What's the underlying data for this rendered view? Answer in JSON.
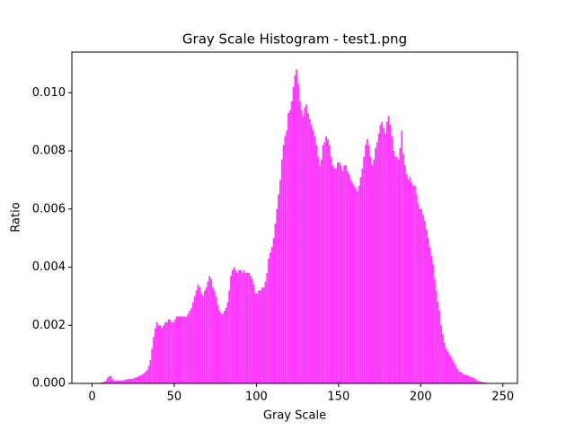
{
  "chart_data": {
    "type": "histogram",
    "title": "Gray Scale Histogram - test1.png",
    "xlabel": "Gray Scale",
    "ylabel": "Ratio",
    "color": "#ff38ff",
    "bins": [
      0,
      1,
      2,
      3,
      4,
      5,
      6,
      7,
      8,
      9,
      10,
      11,
      12,
      13,
      14,
      15,
      16,
      17,
      18,
      19,
      20,
      21,
      22,
      23,
      24,
      25,
      26,
      27,
      28,
      29,
      30,
      31,
      32,
      33,
      34,
      35,
      36,
      37,
      38,
      39,
      40,
      41,
      42,
      43,
      44,
      45,
      46,
      47,
      48,
      49,
      50,
      51,
      52,
      53,
      54,
      55,
      56,
      57,
      58,
      59,
      60,
      61,
      62,
      63,
      64,
      65,
      66,
      67,
      68,
      69,
      70,
      71,
      72,
      73,
      74,
      75,
      76,
      77,
      78,
      79,
      80,
      81,
      82,
      83,
      84,
      85,
      86,
      87,
      88,
      89,
      90,
      91,
      92,
      93,
      94,
      95,
      96,
      97,
      98,
      99,
      100,
      101,
      102,
      103,
      104,
      105,
      106,
      107,
      108,
      109,
      110,
      111,
      112,
      113,
      114,
      115,
      116,
      117,
      118,
      119,
      120,
      121,
      122,
      123,
      124,
      125,
      126,
      127,
      128,
      129,
      130,
      131,
      132,
      133,
      134,
      135,
      136,
      137,
      138,
      139,
      140,
      141,
      142,
      143,
      144,
      145,
      146,
      147,
      148,
      149,
      150,
      151,
      152,
      153,
      154,
      155,
      156,
      157,
      158,
      159,
      160,
      161,
      162,
      163,
      164,
      165,
      166,
      167,
      168,
      169,
      170,
      171,
      172,
      173,
      174,
      175,
      176,
      177,
      178,
      179,
      180,
      181,
      182,
      183,
      184,
      185,
      186,
      187,
      188,
      189,
      190,
      191,
      192,
      193,
      194,
      195,
      196,
      197,
      198,
      199,
      200,
      201,
      202,
      203,
      204,
      205,
      206,
      207,
      208,
      209,
      210,
      211,
      212,
      213,
      214,
      215,
      216,
      217,
      218,
      219,
      220,
      221,
      222,
      223,
      224,
      225,
      226,
      227,
      228,
      229,
      230,
      231,
      232,
      233,
      234,
      235,
      236,
      237,
      238,
      239,
      240,
      241,
      242,
      243,
      244,
      245,
      246
    ],
    "values": [
      2e-05,
      2e-05,
      2e-05,
      2e-05,
      2e-05,
      3e-05,
      4e-05,
      6e-05,
      0.0001,
      0.0002,
      0.00025,
      0.00025,
      0.00015,
      0.0001,
      0.0001,
      0.0001,
      0.0001,
      0.0001,
      0.0001,
      0.00012,
      0.00012,
      0.00015,
      0.00015,
      0.00015,
      0.00016,
      0.00018,
      0.0002,
      0.00022,
      0.00025,
      0.00028,
      0.0003,
      0.00035,
      0.0004,
      0.00045,
      0.0006,
      0.0008,
      0.0012,
      0.0016,
      0.0019,
      0.0021,
      0.002,
      0.002,
      0.0019,
      0.002,
      0.0021,
      0.0021,
      0.0022,
      0.0022,
      0.0021,
      0.0021,
      0.0022,
      0.0023,
      0.0023,
      0.0023,
      0.0023,
      0.0023,
      0.0023,
      0.0023,
      0.0024,
      0.0025,
      0.0026,
      0.0028,
      0.003,
      0.0032,
      0.0034,
      0.0033,
      0.0031,
      0.003,
      0.0032,
      0.0033,
      0.0035,
      0.0037,
      0.0036,
      0.0033,
      0.0032,
      0.003,
      0.0027,
      0.0025,
      0.0024,
      0.0024,
      0.0025,
      0.0026,
      0.0028,
      0.0032,
      0.0037,
      0.0039,
      0.004,
      0.0039,
      0.0038,
      0.0039,
      0.0039,
      0.0038,
      0.0039,
      0.0038,
      0.0038,
      0.0038,
      0.0037,
      0.0036,
      0.0034,
      0.0031,
      0.0031,
      0.0032,
      0.0032,
      0.0033,
      0.0033,
      0.0035,
      0.0038,
      0.0043,
      0.0045,
      0.0047,
      0.005,
      0.0055,
      0.006,
      0.0065,
      0.007,
      0.0077,
      0.0082,
      0.0085,
      0.0087,
      0.0093,
      0.0094,
      0.0097,
      0.0102,
      0.0106,
      0.0108,
      0.0103,
      0.0097,
      0.0094,
      0.0092,
      0.0095,
      0.0096,
      0.0093,
      0.0091,
      0.0089,
      0.0087,
      0.0085,
      0.0082,
      0.0078,
      0.0075,
      0.0077,
      0.0082,
      0.0083,
      0.0085,
      0.0084,
      0.0082,
      0.0078,
      0.0075,
      0.0074,
      0.0074,
      0.0076,
      0.0076,
      0.0075,
      0.0073,
      0.0075,
      0.0075,
      0.0073,
      0.0072,
      0.007,
      0.0069,
      0.0068,
      0.0067,
      0.0066,
      0.0068,
      0.0071,
      0.0074,
      0.0078,
      0.0082,
      0.0084,
      0.0082,
      0.0078,
      0.0075,
      0.0077,
      0.0081,
      0.0083,
      0.0086,
      0.0089,
      0.009,
      0.0088,
      0.0086,
      0.009,
      0.0092,
      0.0089,
      0.0085,
      0.008,
      0.0078,
      0.0078,
      0.0077,
      0.0081,
      0.0087,
      0.0079,
      0.0075,
      0.0072,
      0.007,
      0.0071,
      0.0069,
      0.0068,
      0.0068,
      0.0065,
      0.0062,
      0.006,
      0.006,
      0.0058,
      0.0056,
      0.0053,
      0.005,
      0.0047,
      0.0044,
      0.0041,
      0.0036,
      0.0032,
      0.0028,
      0.0025,
      0.002,
      0.0017,
      0.0014,
      0.0012,
      0.0011,
      0.001,
      0.0009,
      0.0008,
      0.0007,
      0.0006,
      0.0005,
      0.0004,
      0.0004,
      0.00035,
      0.0003,
      0.0003,
      0.00028,
      0.00025,
      0.00022,
      0.0002,
      0.00018,
      0.00015,
      0.0001,
      8e-05,
      6e-05,
      5e-05,
      4e-05,
      3e-05,
      2e-05,
      1e-05,
      1e-05,
      1e-05,
      1e-05,
      1e-05
    ],
    "xlim": [
      -12.3,
      258.9
    ],
    "xticks": [
      0,
      50,
      100,
      150,
      200,
      250
    ],
    "ylim": [
      0,
      0.0114
    ],
    "yticks": [
      {
        "value": 0,
        "label": "0.000"
      },
      {
        "value": 0.002,
        "label": "0.002"
      },
      {
        "value": 0.004,
        "label": "0.004"
      },
      {
        "value": 0.006,
        "label": "0.006"
      },
      {
        "value": 0.008,
        "label": "0.008"
      },
      {
        "value": 0.01,
        "label": "0.010"
      }
    ]
  }
}
